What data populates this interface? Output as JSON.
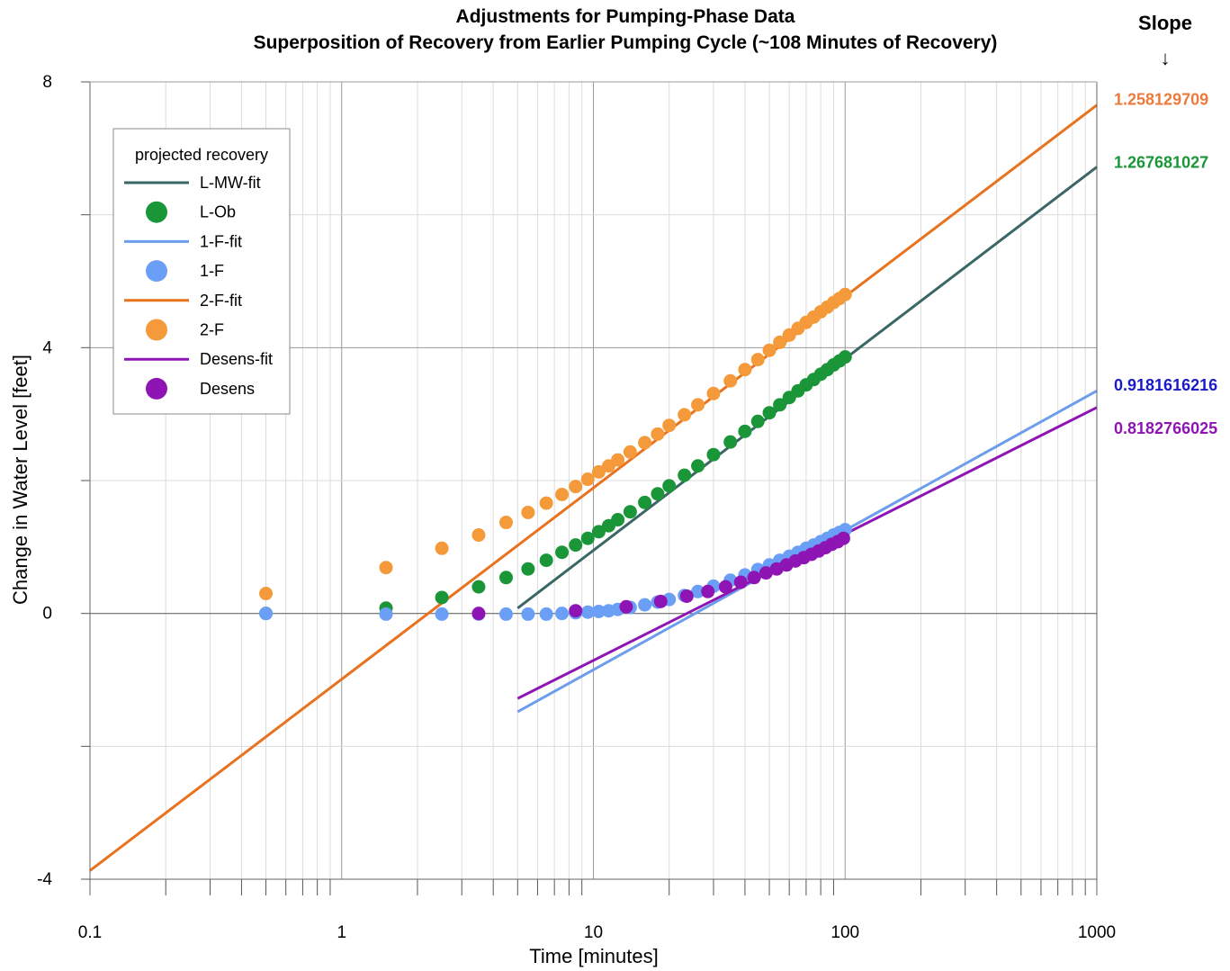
{
  "chart_data": {
    "type": "scatter",
    "title": "Adjustments for Pumping-Phase Data",
    "subtitle": "Superposition of Recovery from Earlier Pumping Cycle (~108 Minutes of Recovery)",
    "xlabel": "Time [minutes]",
    "ylabel": "Change in Water Level [feet]",
    "x_scale": "log",
    "xlim": [
      0.1,
      1000
    ],
    "ylim": [
      -4,
      8
    ],
    "x_ticks": [
      "0.1",
      "1",
      "10",
      "100",
      "1000"
    ],
    "y_ticks": [
      "-4",
      "0",
      "4",
      "8"
    ],
    "grid": true,
    "legend": {
      "title": "projected recovery",
      "position": "top-left",
      "entries": [
        {
          "label": "L-MW-fit",
          "kind": "line",
          "color": "#3b6666"
        },
        {
          "label": "L-Ob",
          "kind": "marker",
          "color": "#1a9639"
        },
        {
          "label": "1-F-fit",
          "kind": "line",
          "color": "#6d9eeb"
        },
        {
          "label": "1-F",
          "kind": "marker",
          "color": "#6b9ff5"
        },
        {
          "label": "2-F-fit",
          "kind": "line",
          "color": "#e8721e"
        },
        {
          "label": "2-F",
          "kind": "marker",
          "color": "#f59a3a"
        },
        {
          "label": "Desens-fit",
          "kind": "line",
          "color": "#8e15b4"
        },
        {
          "label": "Desens",
          "kind": "marker",
          "color": "#8e15b4"
        }
      ]
    },
    "slope_header": "Slope",
    "slope_arrow": "↓",
    "slopes": [
      {
        "value": "1.258129709",
        "color": "#ec7a3d",
        "at_y": 7.75
      },
      {
        "value": "1.267681027",
        "color": "#1a9639",
        "at_y": 6.8
      },
      {
        "value": "0.9181616216",
        "color": "#1a1ac8",
        "at_y": 3.45
      },
      {
        "value": "0.8182766025",
        "color": "#8e15b4",
        "at_y": 2.8
      }
    ],
    "fit_lines": [
      {
        "name": "2-F-fit",
        "color": "#e8721e",
        "x": [
          0.1,
          1000
        ],
        "y": [
          -3.87,
          7.65
        ]
      },
      {
        "name": "L-MW-fit",
        "color": "#3b6666",
        "x": [
          5,
          1000
        ],
        "y": [
          0.08,
          6.72
        ]
      },
      {
        "name": "1-F-fit",
        "color": "#6d9eeb",
        "x": [
          5,
          1000
        ],
        "y": [
          -1.48,
          3.35
        ]
      },
      {
        "name": "Desens-fit",
        "color": "#8e15b4",
        "x": [
          5,
          1000
        ],
        "y": [
          -1.28,
          3.1
        ]
      }
    ],
    "series": [
      {
        "name": "2-F",
        "color": "#f59a3a",
        "x": [
          0.5,
          1.5,
          2.5,
          3.5,
          4.5,
          5.5,
          6.5,
          7.5,
          8.5,
          9.5,
          10.5,
          11.5,
          12.5,
          14,
          16,
          18,
          20,
          23,
          26,
          30,
          35,
          40,
          45,
          50,
          55,
          60,
          65,
          70,
          75,
          80,
          85,
          90,
          95,
          100
        ],
        "y": [
          0.3,
          0.69,
          0.98,
          1.18,
          1.37,
          1.52,
          1.66,
          1.79,
          1.91,
          2.02,
          2.13,
          2.22,
          2.31,
          2.43,
          2.57,
          2.7,
          2.83,
          2.99,
          3.14,
          3.31,
          3.5,
          3.67,
          3.82,
          3.96,
          4.08,
          4.19,
          4.29,
          4.38,
          4.46,
          4.54,
          4.61,
          4.68,
          4.74,
          4.8
        ]
      },
      {
        "name": "L-Ob",
        "color": "#1a9639",
        "x": [
          0.5,
          1.5,
          2.5,
          3.5,
          4.5,
          5.5,
          6.5,
          7.5,
          8.5,
          9.5,
          10.5,
          11.5,
          12.5,
          14,
          16,
          18,
          20,
          23,
          26,
          30,
          35,
          40,
          45,
          50,
          55,
          60,
          65,
          70,
          75,
          80,
          85,
          90,
          95,
          100
        ],
        "y": [
          0.0,
          0.08,
          0.24,
          0.4,
          0.54,
          0.67,
          0.8,
          0.92,
          1.03,
          1.13,
          1.23,
          1.32,
          1.41,
          1.53,
          1.67,
          1.8,
          1.92,
          2.08,
          2.22,
          2.39,
          2.58,
          2.74,
          2.89,
          3.02,
          3.14,
          3.25,
          3.35,
          3.44,
          3.52,
          3.6,
          3.67,
          3.74,
          3.8,
          3.86
        ]
      },
      {
        "name": "1-F",
        "color": "#6b9ff5",
        "x": [
          0.5,
          1.5,
          2.5,
          3.5,
          4.5,
          5.5,
          6.5,
          7.5,
          8.5,
          9.5,
          10.5,
          11.5,
          12.5,
          14,
          16,
          18,
          20,
          23,
          26,
          30,
          35,
          40,
          45,
          50,
          55,
          60,
          65,
          70,
          75,
          80,
          85,
          90,
          95,
          100
        ],
        "y": [
          0.0,
          -0.01,
          -0.01,
          -0.01,
          -0.01,
          -0.01,
          -0.01,
          0.0,
          0.01,
          0.02,
          0.03,
          0.04,
          0.06,
          0.09,
          0.13,
          0.17,
          0.21,
          0.27,
          0.33,
          0.41,
          0.5,
          0.58,
          0.66,
          0.73,
          0.8,
          0.86,
          0.92,
          0.98,
          1.03,
          1.08,
          1.13,
          1.18,
          1.22,
          1.26
        ]
      },
      {
        "name": "Desens",
        "color": "#8e15b4",
        "x": [
          3.5,
          8.5,
          13.5,
          18.5,
          23.5,
          28.5,
          33.5,
          38.5,
          43.5,
          48.5,
          53.5,
          58.5,
          63.5,
          68.5,
          73.5,
          78.5,
          83.5,
          88.5,
          93.5,
          98.5
        ],
        "y": [
          0.0,
          0.04,
          0.1,
          0.18,
          0.26,
          0.33,
          0.4,
          0.47,
          0.54,
          0.61,
          0.67,
          0.73,
          0.79,
          0.84,
          0.89,
          0.94,
          0.99,
          1.04,
          1.08,
          1.13
        ]
      }
    ]
  }
}
